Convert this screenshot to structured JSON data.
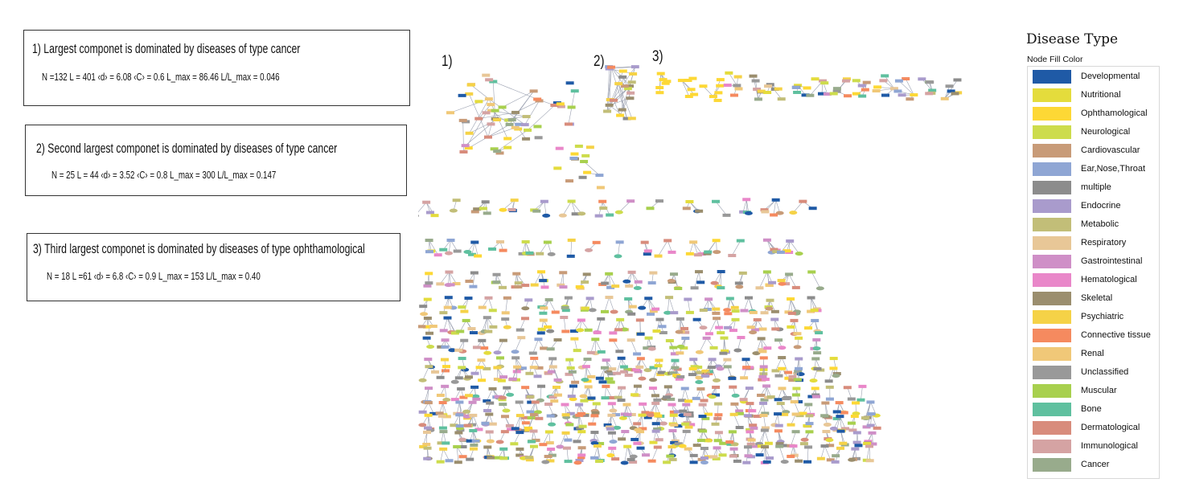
{
  "components": [
    {
      "title": "1) Largest componet  is dominated by diseases of type cancer",
      "stats": "N =132    L = 401    ‹d› = 6.08    ‹C› = 0.6    L_max = 86.46    L/L_max = 0.046"
    },
    {
      "title": "2) Second largest componet  is dominated by diseases of type cancer",
      "stats": "N = 25    L = 44    ‹d› = 3.52    ‹C› = 0.8    L_max = 300    L/L_max = 0.147"
    },
    {
      "title": "3) Third largest componet  is dominated by diseases of type ophthamological",
      "stats": "N = 18    L =61    ‹d› = 6.8    ‹C› = 0.9    L_max = 153    L/L_max = 0.40"
    }
  ],
  "network_labels": [
    "1)",
    "2)",
    "3)"
  ],
  "legend": {
    "title": "Disease Type",
    "subtitle": "Node Fill Color",
    "items": [
      {
        "label": "Developmental",
        "color": "#1f5aa6"
      },
      {
        "label": "Nutritional",
        "color": "#e4dc3c"
      },
      {
        "label": "Ophthamological",
        "color": "#fdd835"
      },
      {
        "label": "Neurological",
        "color": "#cddc4c"
      },
      {
        "label": "Cardiovascular",
        "color": "#c89b78"
      },
      {
        "label": "Ear,Nose,Throat",
        "color": "#8fa6d4"
      },
      {
        "label": "multiple",
        "color": "#8c8c8c"
      },
      {
        "label": "Endocrine",
        "color": "#a99bcc"
      },
      {
        "label": "Metabolic",
        "color": "#c2be78"
      },
      {
        "label": "Respiratory",
        "color": "#e8c797"
      },
      {
        "label": "Gastrointestinal",
        "color": "#cf8fc7"
      },
      {
        "label": "Hematological",
        "color": "#e987c9"
      },
      {
        "label": "Skeletal",
        "color": "#9b8e6e"
      },
      {
        "label": "Psychiatric",
        "color": "#f5d247"
      },
      {
        "label": "Connective tissue",
        "color": "#f58a5f"
      },
      {
        "label": "Renal",
        "color": "#f0c878"
      },
      {
        "label": "Unclassified",
        "color": "#999999"
      },
      {
        "label": "Muscular",
        "color": "#a8d04e"
      },
      {
        "label": "Bone",
        "color": "#5fc09f"
      },
      {
        "label": "Dermatological",
        "color": "#d88c7c"
      },
      {
        "label": "Immunological",
        "color": "#d5a3a3"
      },
      {
        "label": "Cancer",
        "color": "#98ab8c"
      }
    ]
  }
}
